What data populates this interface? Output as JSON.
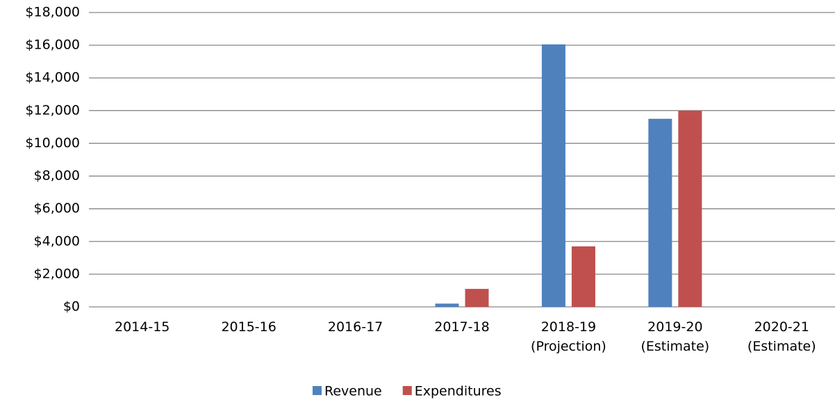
{
  "chart_data": {
    "type": "bar",
    "categories": [
      "2014-15",
      "2015-16",
      "2016-17",
      "2017-18",
      "2018-19\n(Projection)",
      "2019-20\n(Estimate)",
      "2020-21\n(Estimate)"
    ],
    "series": [
      {
        "name": "Revenue",
        "color": "#4f81bd",
        "values": [
          0,
          0,
          0,
          200,
          16050,
          11500,
          0
        ]
      },
      {
        "name": "Expenditures",
        "color": "#c0504d",
        "values": [
          0,
          0,
          0,
          1100,
          3700,
          12000,
          0
        ]
      }
    ],
    "ylim": [
      0,
      18000
    ],
    "yticks": [
      {
        "value": 0,
        "label": "$0"
      },
      {
        "value": 2000,
        "label": "$2,000"
      },
      {
        "value": 4000,
        "label": "$4,000"
      },
      {
        "value": 6000,
        "label": "$6,000"
      },
      {
        "value": 8000,
        "label": "$8,000"
      },
      {
        "value": 10000,
        "label": "$10,000"
      },
      {
        "value": 12000,
        "label": "$12,000"
      },
      {
        "value": 14000,
        "label": "$14,000"
      },
      {
        "value": 16000,
        "label": "$16,000"
      },
      {
        "value": 18000,
        "label": "$18,000"
      }
    ],
    "grid": true,
    "legend": "bottom"
  }
}
